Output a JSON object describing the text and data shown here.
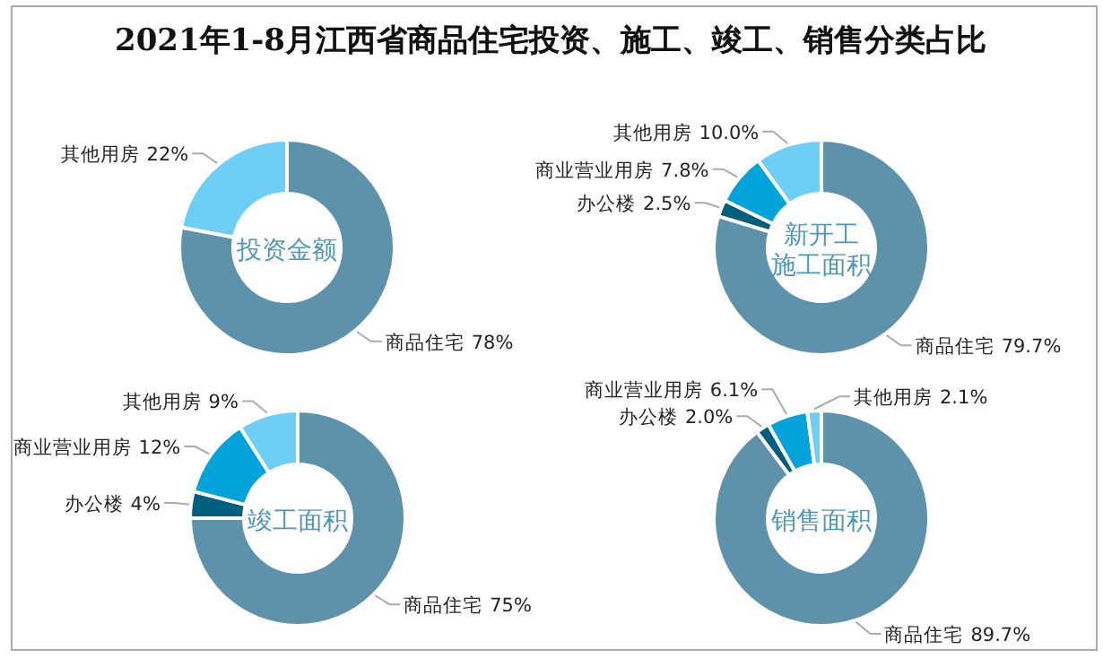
{
  "chart_data": [
    {
      "type": "other",
      "title": "2021年1-8月江西省商品住宅投资、施工、竣工、销售分类占比"
    },
    {
      "type": "donut",
      "title": "投资金额",
      "categories": [
        "商品住宅",
        "其他用房"
      ],
      "values": [
        78,
        22
      ],
      "value_labels": [
        "78%",
        "22%"
      ],
      "colors": [
        "#5e92aa",
        "#6dcff6"
      ]
    },
    {
      "type": "donut",
      "title": "新开工施工面积",
      "categories": [
        "商品住宅",
        "办公楼",
        "商业营业用房",
        "其他用房"
      ],
      "values": [
        79.7,
        2.5,
        7.8,
        10.0
      ],
      "value_labels": [
        "79.7%",
        "2.5%",
        "7.8%",
        "10.0%"
      ],
      "colors": [
        "#5e92aa",
        "#005f7f",
        "#00a3da",
        "#6dcff6"
      ]
    },
    {
      "type": "donut",
      "title": "竣工面积",
      "categories": [
        "商品住宅",
        "办公楼",
        "商业营业用房",
        "其他用房"
      ],
      "values": [
        75,
        4,
        12,
        9
      ],
      "value_labels": [
        "75%",
        "4%",
        "12%",
        "9%"
      ],
      "colors": [
        "#5e92aa",
        "#005f7f",
        "#00a3da",
        "#6dcff6"
      ]
    },
    {
      "type": "donut",
      "title": "销售面积",
      "categories": [
        "商品住宅",
        "办公楼",
        "商业营业用房",
        "其他用房"
      ],
      "values": [
        89.7,
        2.0,
        6.1,
        2.1
      ],
      "value_labels": [
        "89.7%",
        "2.0%",
        "6.1%",
        "2.1%"
      ],
      "colors": [
        "#5e92aa",
        "#005f7f",
        "#00a3da",
        "#6dcff6"
      ]
    }
  ]
}
